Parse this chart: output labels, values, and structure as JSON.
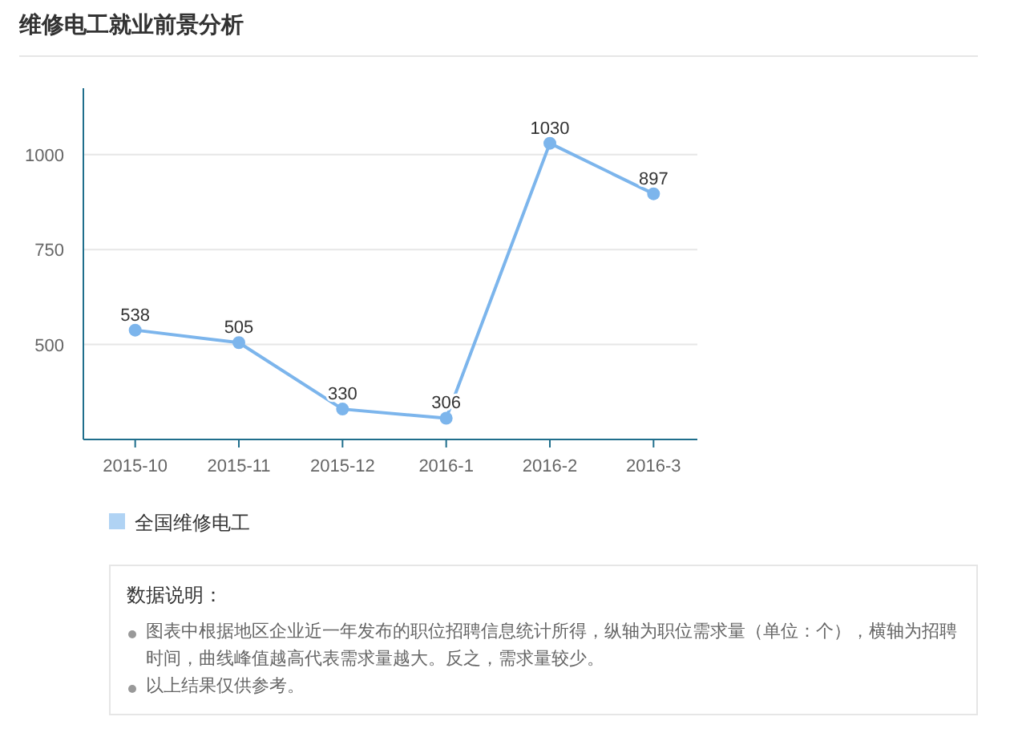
{
  "chart_data": {
    "type": "line",
    "title": "维修电工就业前景分析",
    "categories": [
      "2015-10",
      "2015-11",
      "2015-12",
      "2016-1",
      "2016-2",
      "2016-3"
    ],
    "series": [
      {
        "name": "全国维修电工",
        "color": "#7cb5ec",
        "values": [
          538,
          505,
          330,
          306,
          1030,
          897
        ]
      }
    ],
    "ylim": [
      250,
      1175
    ],
    "yticks": [
      500,
      750,
      1000
    ],
    "grid": "y",
    "marker": "circle",
    "data_labels": true,
    "legend": "bottom left",
    "annotations": [
      "数据说明：",
      "图表中根据地区企业近一年发布的职位招聘信息统计所得，纵轴为职位需求量（单位：个），横轴为招聘时间，曲线峰值越高代表需求量越大。反之，需求量较少。",
      "以上结果仅供参考。"
    ]
  }
}
